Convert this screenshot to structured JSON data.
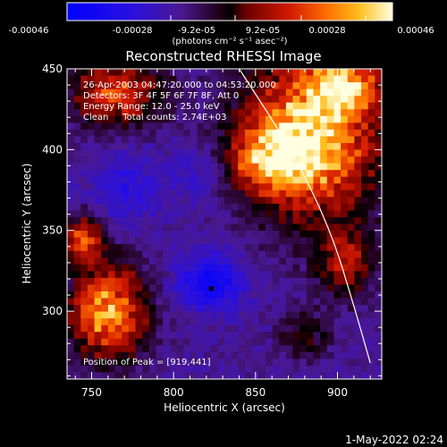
{
  "chart_data": {
    "type": "heatmap",
    "title": "Reconstructed RHESSI Image",
    "xlabel": "Heliocentric X (arcsec)",
    "ylabel": "Heliocentric Y (arcsec)",
    "xlim": [
      735,
      927
    ],
    "ylim": [
      258,
      450
    ],
    "x_ticks": [
      750,
      800,
      850,
      900
    ],
    "y_ticks": [
      300,
      350,
      400,
      450
    ],
    "colorbar": {
      "ticks": [
        "-0.00046",
        "-0.00028",
        "-9.2e-05",
        "9.2e-05",
        "0.00028",
        "0.00046"
      ],
      "label": "(photons cm⁻² s⁻¹ asec⁻²)",
      "range": [
        -0.00046,
        0.00046
      ]
    },
    "info_lines": [
      "26-Apr-2003 04:47:20.000 to 04:53:20.000",
      "Detectors: 3F 4F 5F 6F 7F 8F, Att 0",
      "Energy Range: 12.0 - 25.0 keV",
      "Clean     Total counts: 2.74E+03"
    ],
    "peak_label": "Position of Peak = [919,441]",
    "peak_position": [
      919,
      441
    ],
    "marker_position": [
      823,
      314
    ],
    "limb_points": [
      [
        840,
        450
      ],
      [
        872,
        400
      ],
      [
        896,
        350
      ],
      [
        911,
        300
      ],
      [
        920,
        268
      ]
    ],
    "hot_regions": [
      {
        "x": 885,
        "y": 410,
        "sx": 28,
        "sy": 35,
        "amp": 0.95
      },
      {
        "x": 905,
        "y": 440,
        "sx": 14,
        "sy": 10,
        "amp": 0.7
      },
      {
        "x": 860,
        "y": 395,
        "sx": 18,
        "sy": 14,
        "amp": 0.6
      },
      {
        "x": 760,
        "y": 300,
        "sx": 16,
        "sy": 20,
        "amp": 0.85
      },
      {
        "x": 745,
        "y": 345,
        "sx": 9,
        "sy": 10,
        "amp": 0.6
      },
      {
        "x": 765,
        "y": 435,
        "sx": 20,
        "sy": 14,
        "amp": 0.6
      },
      {
        "x": 905,
        "y": 330,
        "sx": 12,
        "sy": 15,
        "amp": 0.45
      },
      {
        "x": 880,
        "y": 285,
        "sx": 10,
        "sy": 10,
        "amp": 0.3
      }
    ],
    "cold_regions": [
      {
        "x": 823,
        "y": 318,
        "sx": 14,
        "sy": 12,
        "amp": 0.9
      },
      {
        "x": 770,
        "y": 375,
        "sx": 14,
        "sy": 16,
        "amp": 0.45
      },
      {
        "x": 815,
        "y": 385,
        "sx": 12,
        "sy": 12,
        "amp": 0.35
      }
    ]
  },
  "footer_timestamp": "1-May-2022 02:24"
}
